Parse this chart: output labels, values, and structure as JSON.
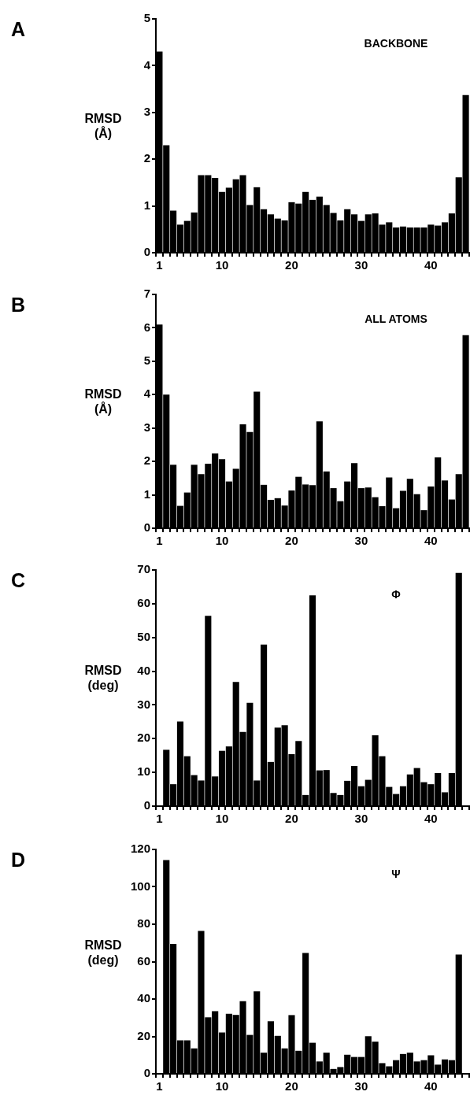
{
  "chart_data": [
    {
      "type": "bar",
      "title": "BACKBONE",
      "annotations": [
        "A"
      ],
      "ylabel": "RMSD (Å)",
      "color": "#000000",
      "ylim": [
        0,
        5
      ],
      "yticks": [
        0,
        1,
        2,
        3,
        4,
        5
      ],
      "categories": [
        "1",
        null,
        null,
        null,
        null,
        null,
        null,
        null,
        null,
        "10",
        null,
        null,
        null,
        null,
        null,
        null,
        null,
        null,
        null,
        "20",
        null,
        null,
        null,
        null,
        null,
        null,
        null,
        null,
        null,
        "30",
        null,
        null,
        null,
        null,
        null,
        null,
        null,
        null,
        null,
        "40",
        null,
        null,
        null,
        null,
        null
      ],
      "values": [
        4.3,
        2.3,
        0.9,
        0.6,
        0.68,
        0.86,
        1.66,
        1.66,
        1.6,
        1.3,
        1.39,
        1.57,
        1.66,
        1.02,
        1.4,
        0.93,
        0.82,
        0.73,
        0.69,
        1.08,
        1.05,
        1.3,
        1.13,
        1.2,
        1.02,
        0.85,
        0.69,
        0.93,
        0.82,
        0.68,
        0.82,
        0.84,
        0.6,
        0.65,
        0.54,
        0.56,
        0.54,
        0.54,
        0.54,
        0.6,
        0.58,
        0.65,
        0.84,
        1.61,
        3.37
      ]
    },
    {
      "type": "bar",
      "title": "ALL ATOMS",
      "annotations": [
        "B"
      ],
      "ylabel": "RMSD (Å)",
      "color": "#000000",
      "ylim": [
        0,
        7
      ],
      "yticks": [
        0,
        1,
        2,
        3,
        4,
        5,
        6,
        7
      ],
      "categories": [
        "1",
        null,
        null,
        null,
        null,
        null,
        null,
        null,
        null,
        "10",
        null,
        null,
        null,
        null,
        null,
        null,
        null,
        null,
        null,
        "20",
        null,
        null,
        null,
        null,
        null,
        null,
        null,
        null,
        null,
        "30",
        null,
        null,
        null,
        null,
        null,
        null,
        null,
        null,
        null,
        "40",
        null,
        null,
        null,
        null,
        null
      ],
      "values": [
        6.1,
        4.0,
        1.9,
        0.67,
        1.07,
        1.9,
        1.62,
        1.93,
        2.24,
        2.07,
        1.4,
        1.78,
        3.11,
        2.88,
        4.09,
        1.3,
        0.85,
        0.9,
        0.68,
        1.13,
        1.54,
        1.31,
        1.29,
        3.2,
        1.7,
        1.2,
        0.81,
        1.4,
        1.95,
        1.2,
        1.22,
        0.93,
        0.66,
        1.52,
        0.6,
        1.12,
        1.48,
        1.02,
        0.54,
        1.25,
        2.12,
        1.43,
        0.86,
        1.62,
        5.78
      ]
    },
    {
      "type": "bar",
      "title": "Φ",
      "annotations": [
        "C"
      ],
      "ylabel": "RMSD (deg)",
      "color": "#000000",
      "ylim": [
        0,
        70
      ],
      "yticks": [
        0,
        10,
        20,
        30,
        40,
        50,
        60,
        70
      ],
      "categories": [
        "1",
        null,
        null,
        null,
        null,
        null,
        null,
        null,
        null,
        "10",
        null,
        null,
        null,
        null,
        null,
        null,
        null,
        null,
        null,
        "20",
        null,
        null,
        null,
        null,
        null,
        null,
        null,
        null,
        null,
        "30",
        null,
        null,
        null,
        null,
        null,
        null,
        null,
        null,
        null,
        "40",
        null,
        null,
        null,
        null,
        null
      ],
      "values": [
        null,
        16.7,
        6.5,
        25.1,
        14.8,
        9.2,
        7.6,
        56.4,
        8.8,
        16.4,
        17.7,
        36.8,
        22.0,
        30.6,
        7.6,
        47.9,
        13.1,
        23.3,
        24.0,
        15.4,
        19.3,
        3.3,
        62.5,
        10.6,
        10.7,
        3.9,
        3.3,
        7.5,
        11.9,
        5.9,
        7.8,
        21.0,
        14.8,
        5.7,
        3.6,
        5.9,
        9.4,
        11.3,
        7.1,
        6.5,
        9.8,
        4.1,
        9.8,
        69.1,
        null
      ]
    },
    {
      "type": "bar",
      "title": "Ψ",
      "annotations": [
        "D"
      ],
      "ylabel": "RMSD (deg)",
      "color": "#000000",
      "ylim": [
        0,
        120
      ],
      "yticks": [
        0,
        20,
        40,
        60,
        80,
        100,
        120
      ],
      "categories": [
        "1",
        null,
        null,
        null,
        null,
        null,
        null,
        null,
        null,
        "10",
        null,
        null,
        null,
        null,
        null,
        null,
        null,
        null,
        null,
        "20",
        null,
        null,
        null,
        null,
        null,
        null,
        null,
        null,
        null,
        "30",
        null,
        null,
        null,
        null,
        null,
        null,
        null,
        null,
        null,
        "40",
        null,
        null,
        null,
        null,
        null
      ],
      "values": [
        null,
        114.3,
        69.5,
        17.9,
        17.9,
        13.6,
        76.4,
        30.2,
        33.5,
        22.1,
        32.1,
        31.5,
        38.8,
        20.8,
        44.1,
        11.3,
        28.1,
        20.3,
        13.6,
        31.4,
        12.3,
        64.6,
        16.6,
        6.6,
        11.3,
        2.6,
        3.6,
        10.2,
        9.0,
        9.0,
        20.1,
        17.2,
        5.7,
        4.0,
        7.3,
        10.6,
        11.3,
        6.6,
        7.3,
        9.9,
        4.9,
        7.7,
        7.3,
        63.8,
        null
      ]
    }
  ]
}
